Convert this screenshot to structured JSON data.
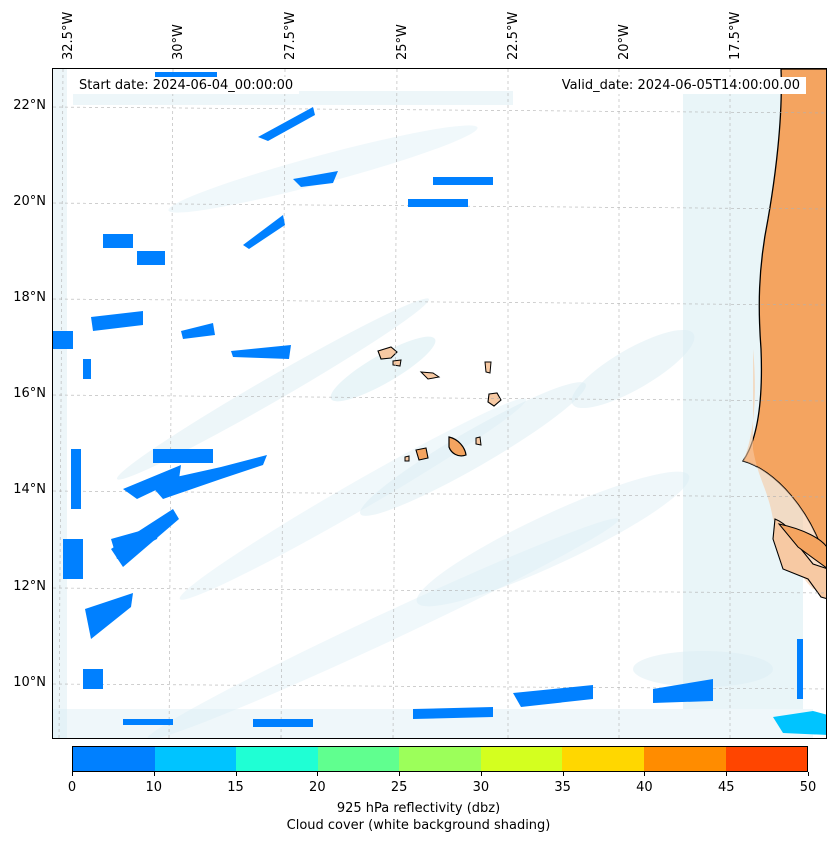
{
  "map": {
    "start_date": "Start date: 2024-06-04_00:00:00",
    "valid_date": "Valid_date: 2024-06-05T14:00:00.00",
    "lon_labels": [
      "32.5°W",
      "30°W",
      "27.5°W",
      "25°W",
      "22.5°W",
      "20°W",
      "17.5°W"
    ],
    "lat_labels": [
      "22°N",
      "20°N",
      "18°N",
      "16°N",
      "14°N",
      "12°N",
      "10°N"
    ],
    "land_color": "#f4a460",
    "coast_color": "#000000",
    "cloud_color": "#add8e6"
  },
  "colorbar": {
    "ticks": [
      "0",
      "10",
      "15",
      "20",
      "25",
      "30",
      "35",
      "40",
      "45",
      "50"
    ],
    "colors": [
      "#0080ff",
      "#00c4ff",
      "#1fffd4",
      "#60ff8f",
      "#9cff5a",
      "#d4ff1f",
      "#ffd700",
      "#ff8c00",
      "#ff4500"
    ],
    "label": "925 hPa reflectivity (dbz)",
    "caption": "Cloud cover (white background shading)"
  }
}
